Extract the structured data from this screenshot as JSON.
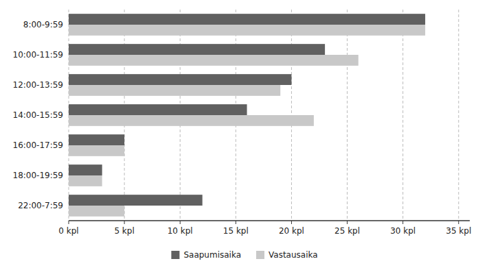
{
  "chart_data": {
    "type": "bar",
    "orientation": "horizontal",
    "categories": [
      "8:00-9:59",
      "10:00-11:59",
      "12:00-13:59",
      "14:00-15:59",
      "16:00-17:59",
      "18:00-19:59",
      "22:00-7:59"
    ],
    "series": [
      {
        "name": "Saapumisaika",
        "color": "#606060",
        "values": [
          32,
          23,
          20,
          16,
          5,
          3,
          12
        ]
      },
      {
        "name": "Vastausaika",
        "color": "#c8c8c8",
        "values": [
          32,
          26,
          19,
          22,
          5,
          3,
          5
        ]
      }
    ],
    "xlim": [
      0,
      36
    ],
    "xticks": [
      {
        "value": 0,
        "label": "0 kpl"
      },
      {
        "value": 5,
        "label": "5 kpl"
      },
      {
        "value": 10,
        "label": "10 kpl"
      },
      {
        "value": 15,
        "label": "15 kpl"
      },
      {
        "value": 20,
        "label": "20 kpl"
      },
      {
        "value": 25,
        "label": "25 kpl"
      },
      {
        "value": 30,
        "label": "30 kpl"
      },
      {
        "value": 35,
        "label": "35 kpl"
      }
    ],
    "grid": true,
    "legend": "bottom"
  }
}
